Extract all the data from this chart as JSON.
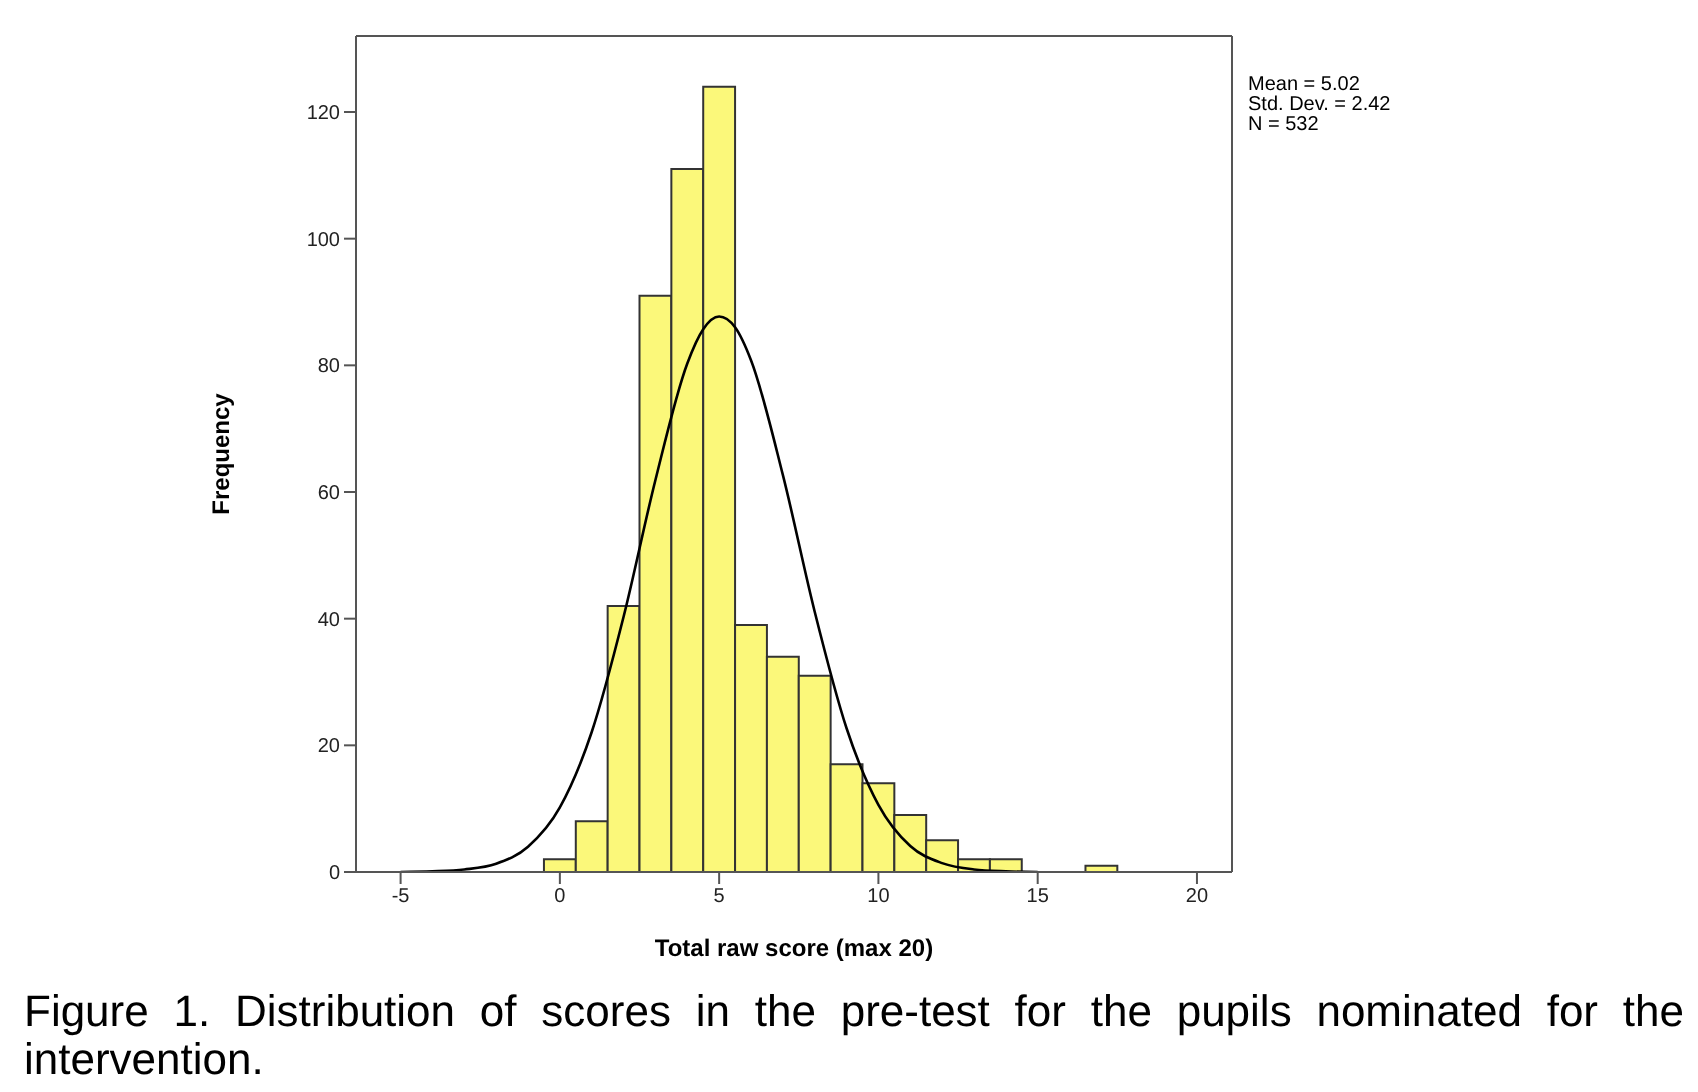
{
  "chart_data": {
    "type": "histogram",
    "xlabel": "Total raw score (max 20)",
    "ylabel": "Frequency",
    "bins": [
      -0.5,
      0.5,
      1.5,
      2.5,
      3.5,
      4.5,
      5.5,
      6.5,
      7.5,
      8.5,
      9.5,
      10.5,
      11.5,
      12.5,
      13.5,
      14.5,
      15.5,
      16.5,
      17.5
    ],
    "values": [
      2,
      8,
      42,
      91,
      111,
      124,
      39,
      34,
      31,
      17,
      14,
      9,
      5,
      2,
      2,
      0,
      0,
      1
    ],
    "color": "#fbf87a",
    "series": [
      {
        "type": "line",
        "color": "#000000",
        "x": [
          -5,
          -4,
          -3,
          -2,
          -1,
          0,
          1,
          2,
          3,
          4,
          4.5,
          5,
          5.5,
          6,
          7,
          8,
          9,
          10,
          11,
          12,
          13,
          14,
          15
        ],
        "values": [
          0,
          0.1,
          0.4,
          1.3,
          4,
          10.2,
          22.1,
          40.3,
          61.9,
          80.3,
          85.7,
          87.7,
          86,
          80.8,
          62.7,
          41.1,
          22.7,
          10.6,
          4.1,
          1.4,
          0.4,
          0.1,
          0
        ]
      }
    ],
    "xlim": [
      -6.4,
      21.1
    ],
    "xticks": [
      -5,
      0,
      5,
      10,
      15,
      20
    ],
    "ylim": [
      0,
      132
    ],
    "yticks": [
      0,
      20,
      40,
      60,
      80,
      100,
      120
    ],
    "grid": false,
    "legend": false,
    "annotations": [
      "Mean = 5.02",
      "Std. Dev. = 2.42",
      "N = 532",
      "Figure 1. Distribution of scores in the pre-test for the pupils nominated for the intervention."
    ]
  }
}
